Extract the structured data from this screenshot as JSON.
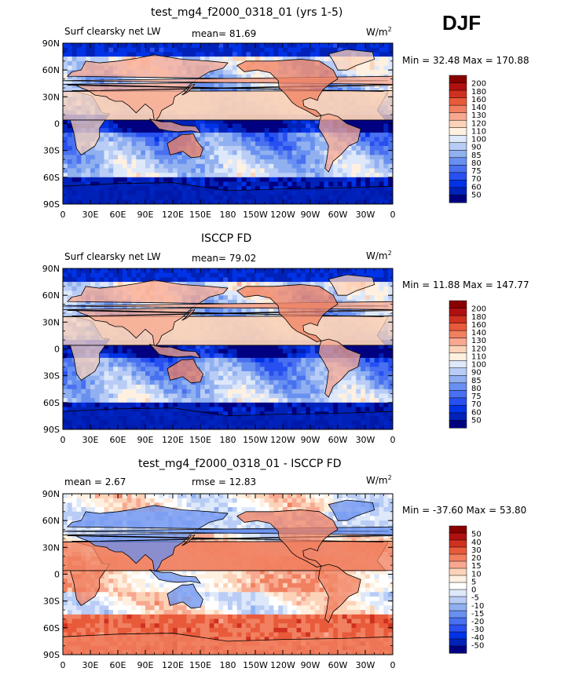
{
  "season": "DJF",
  "colors": {
    "panel_top": [
      "#000080",
      "#0022b8",
      "#0033e6",
      "#2850f0",
      "#4870f0",
      "#6890f0",
      "#90b0f0",
      "#b8ccf5",
      "#dde8fa",
      "#fff0e0",
      "#fcd3b8",
      "#f8a890",
      "#f08060",
      "#e85a3a",
      "#d03020",
      "#b01010",
      "#880000"
    ],
    "panel_diff": [
      "#000080",
      "#0022b8",
      "#0033e6",
      "#2850f0",
      "#4870f0",
      "#6890f0",
      "#90b0f0",
      "#b8ccf5",
      "#dde8fa",
      "#ffffff",
      "#fff0e0",
      "#fcd3b8",
      "#f8a890",
      "#f08060",
      "#e85a3a",
      "#d03020",
      "#b01010",
      "#880000"
    ]
  },
  "units_label": "W/m",
  "units_sup": "2",
  "lat_labels": [
    "90N",
    "60N",
    "30N",
    "0",
    "30S",
    "60S",
    "90S"
  ],
  "lon_labels": [
    "0",
    "30E",
    "60E",
    "90E",
    "120E",
    "150E",
    "180",
    "150W",
    "120W",
    "90W",
    "60W",
    "30W",
    "0"
  ],
  "panels": [
    {
      "title": "test_mg4_f2000_0318_01 (yrs 1-5)",
      "left_label": "Surf clearsky net LW",
      "center_label": "mean=  81.69",
      "minmax": "Min =  32.48 Max = 170.88",
      "colorbar_labels": [
        "200",
        "180",
        "160",
        "140",
        "130",
        "120",
        "110",
        "100",
        "90",
        "85",
        "80",
        "75",
        "70",
        "60",
        "50"
      ]
    },
    {
      "title": "ISCCP FD",
      "left_label": "Surf clearsky net LW",
      "center_label": "mean=  79.02",
      "minmax": "Min =  11.88 Max = 147.77",
      "colorbar_labels": [
        "200",
        "180",
        "160",
        "140",
        "130",
        "120",
        "110",
        "100",
        "90",
        "85",
        "80",
        "75",
        "70",
        "60",
        "50"
      ]
    },
    {
      "title": "test_mg4_f2000_0318_01 - ISCCP FD",
      "left_label": "mean =   2.67",
      "center_label": "rmse =  12.83",
      "minmax": "Min = -37.60 Max =  53.80",
      "colorbar_labels": [
        "50",
        "40",
        "30",
        "20",
        "15",
        "10",
        "5",
        "0",
        "-5",
        "-10",
        "-15",
        "-20",
        "-30",
        "-40",
        "-50"
      ]
    }
  ],
  "chart_data": [
    {
      "type": "heatmap",
      "title": "test_mg4_f2000_0318_01 (yrs 1-5)",
      "variable": "Surf clearsky net LW",
      "units": "W/m2",
      "mean": 81.69,
      "min": 32.48,
      "max": 170.88,
      "contour_levels": [
        50,
        60,
        70,
        75,
        80,
        85,
        90,
        100,
        110,
        120,
        130,
        140,
        160,
        180,
        200
      ],
      "x": "longitude 0 to 360",
      "y": "latitude -90 to 90"
    },
    {
      "type": "heatmap",
      "title": "ISCCP FD",
      "variable": "Surf clearsky net LW",
      "units": "W/m2",
      "mean": 79.02,
      "min": 11.88,
      "max": 147.77,
      "contour_levels": [
        50,
        60,
        70,
        75,
        80,
        85,
        90,
        100,
        110,
        120,
        130,
        140,
        160,
        180,
        200
      ],
      "x": "longitude 0 to 360",
      "y": "latitude -90 to 90"
    },
    {
      "type": "heatmap",
      "title": "test_mg4_f2000_0318_01 - ISCCP FD",
      "units": "W/m2",
      "mean": 2.67,
      "rmse": 12.83,
      "min": -37.6,
      "max": 53.8,
      "contour_levels": [
        -50,
        -40,
        -30,
        -20,
        -15,
        -10,
        -5,
        0,
        5,
        10,
        15,
        20,
        30,
        40,
        50
      ],
      "x": "longitude 0 to 360",
      "y": "latitude -90 to 90"
    }
  ]
}
